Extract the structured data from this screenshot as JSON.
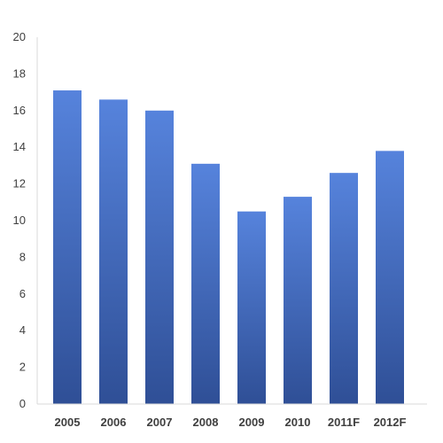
{
  "chart_data": {
    "type": "bar",
    "categories": [
      "2005",
      "2006",
      "2007",
      "2008",
      "2009",
      "2010",
      "2011F",
      "2012F"
    ],
    "values": [
      17.1,
      16.6,
      16.0,
      13.1,
      10.5,
      11.3,
      12.6,
      13.8
    ],
    "ylim": [
      0,
      20
    ],
    "yticks": [
      0,
      2,
      4,
      6,
      8,
      10,
      12,
      14,
      16,
      18,
      20
    ],
    "title": "",
    "xlabel": "",
    "ylabel": "",
    "grid": false,
    "legend": "none",
    "bar_color_top": "#5683dc",
    "bar_color_bottom": "#2f4f96",
    "axis_color": "#d9d9d9",
    "text_color": "#404040"
  }
}
